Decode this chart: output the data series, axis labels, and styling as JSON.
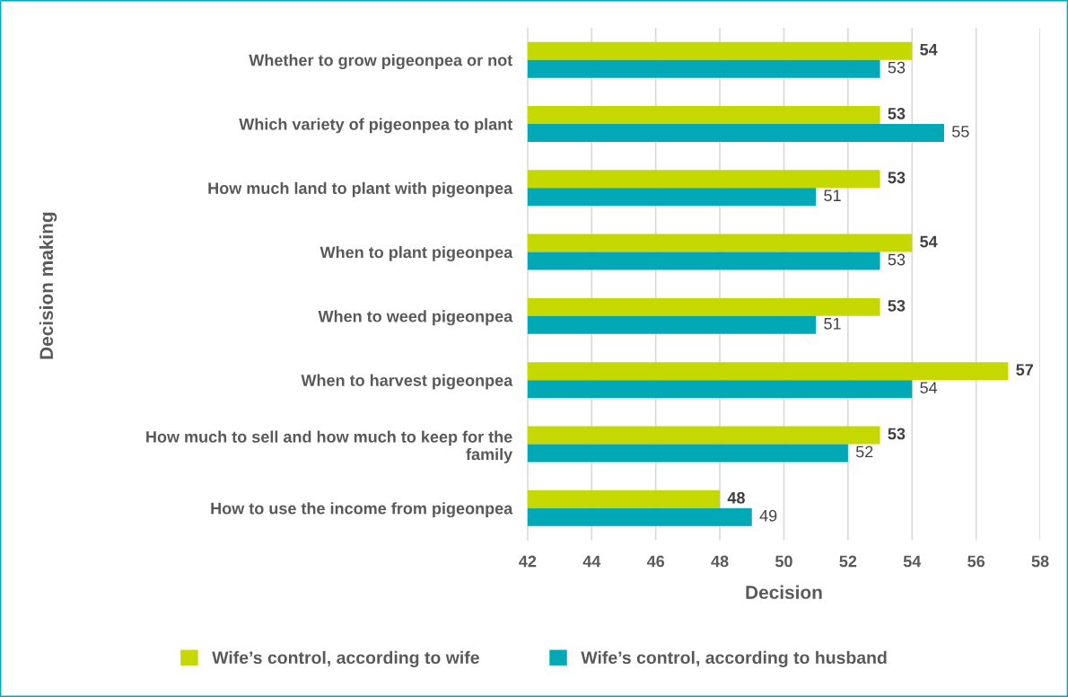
{
  "chart_data": {
    "type": "bar",
    "orientation": "horizontal",
    "xlabel": "Decision",
    "ylabel": "Decision making",
    "categories": [
      "Whether to grow pigeonpea or not",
      "Which variety of pigeonpea to plant",
      "How much land to plant with pigeonpea",
      "When to plant pigeonpea",
      "When to weed pigeonpea",
      "When to harvest pigeonpea",
      "How much to sell and how much to keep for the\nfamily",
      "How to use the income from pigeonpea"
    ],
    "series": [
      {
        "name": "Wife’s control, according to wife",
        "color": "#c5d800",
        "values": [
          54,
          53,
          53,
          54,
          53,
          57,
          53,
          48
        ]
      },
      {
        "name": "Wife’s control, according to husband",
        "color": "#00a9b5",
        "values": [
          53,
          55,
          51,
          53,
          51,
          54,
          52,
          49
        ]
      }
    ],
    "xlim": [
      42,
      58
    ],
    "xticks": [
      42,
      44,
      46,
      48,
      50,
      52,
      54,
      56,
      58
    ],
    "grid": "x",
    "legend": "bottom",
    "data_labels": true
  }
}
